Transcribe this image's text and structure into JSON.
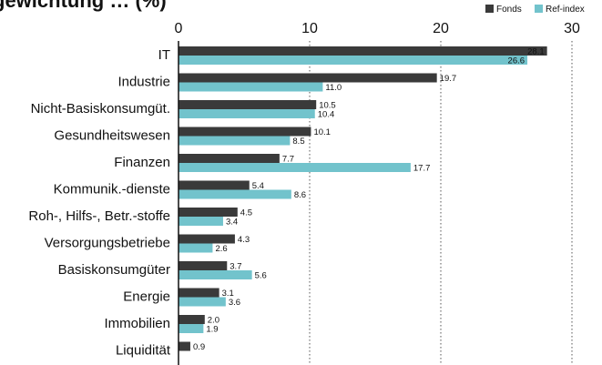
{
  "chart_data": {
    "type": "bar",
    "orientation": "horizontal",
    "title": "gewichtung … (%)",
    "categories": [
      "IT",
      "Industrie",
      "Nicht-Basiskonsumgüt.",
      "Gesundheitswesen",
      "Finanzen",
      "Kommunik.-dienste",
      "Roh-, Hilfs-, Betr.-stoffe",
      "Versorgungsbetriebe",
      "Basiskonsumgüter",
      "Energie",
      "Immobilien",
      "Liquidität"
    ],
    "series": [
      {
        "name": "Fonds",
        "color": "#3a3a3a",
        "values": [
          28.1,
          19.7,
          10.5,
          10.1,
          7.7,
          5.4,
          4.5,
          4.3,
          3.7,
          3.1,
          2.0,
          0.9
        ]
      },
      {
        "name": "Ref-index",
        "color": "#72c3cc",
        "values": [
          26.6,
          11.0,
          10.4,
          8.5,
          17.7,
          8.6,
          3.4,
          2.6,
          5.6,
          3.6,
          1.9,
          null
        ]
      }
    ],
    "value_labels": [
      [
        "28.1",
        "19.7",
        "10.5",
        "10.1",
        "7.7",
        "5.4",
        "4.5",
        "4.3",
        "3.7",
        "3.1",
        "2.0",
        "0.9"
      ],
      [
        "26.6",
        "11.0",
        "10.4",
        "8.5",
        "17.7",
        "8.6",
        "3.4",
        "2.6",
        "5.6",
        "3.6",
        "1.9",
        ""
      ]
    ],
    "xlim": [
      0,
      30
    ],
    "xticks": [
      0,
      10,
      20,
      30
    ],
    "xtick_labels": [
      "0",
      "10",
      "20",
      "30"
    ],
    "grid": "vertical dotted",
    "legend_position": "top-right"
  }
}
